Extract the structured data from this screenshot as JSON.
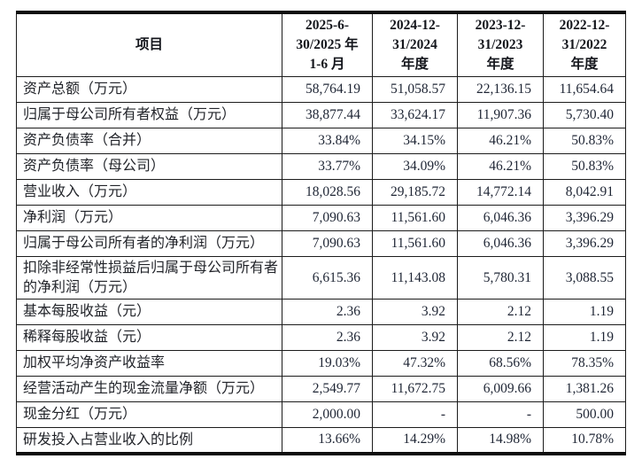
{
  "table": {
    "header": {
      "item": "项目",
      "periods": [
        "2025-6-\n30/2025 年\n1-6 月",
        "2024-12-\n31/2024\n年度",
        "2023-12-\n31/2023\n年度",
        "2022-12-\n31/2022\n年度"
      ]
    },
    "rows": [
      {
        "label": "资产总额（万元）",
        "values": [
          "58,764.19",
          "51,058.57",
          "22,136.15",
          "11,654.64"
        ]
      },
      {
        "label": "归属于母公司所有者权益（万元）",
        "values": [
          "38,877.44",
          "33,624.17",
          "11,907.36",
          "5,730.40"
        ]
      },
      {
        "label": "资产负债率（合并）",
        "values": [
          "33.84%",
          "34.15%",
          "46.21%",
          "50.83%"
        ]
      },
      {
        "label": "资产负债率（母公司）",
        "values": [
          "33.77%",
          "34.09%",
          "46.21%",
          "50.83%"
        ]
      },
      {
        "label": "营业收入（万元）",
        "values": [
          "18,028.56",
          "29,185.72",
          "14,772.14",
          "8,042.91"
        ]
      },
      {
        "label": "净利润（万元）",
        "values": [
          "7,090.63",
          "11,561.60",
          "6,046.36",
          "3,396.29"
        ]
      },
      {
        "label": "归属于母公司所有者的净利润（万元）",
        "values": [
          "7,090.63",
          "11,561.60",
          "6,046.36",
          "3,396.29"
        ]
      },
      {
        "label": "扣除非经常性损益后归属于母公司所有者的净利润（万元）",
        "values": [
          "6,615.36",
          "11,143.08",
          "5,780.31",
          "3,088.55"
        ]
      },
      {
        "label": "基本每股收益（元）",
        "values": [
          "2.36",
          "3.92",
          "2.12",
          "1.19"
        ]
      },
      {
        "label": "稀释每股收益（元）",
        "values": [
          "2.36",
          "3.92",
          "2.12",
          "1.19"
        ]
      },
      {
        "label": "加权平均净资产收益率",
        "values": [
          "19.03%",
          "47.32%",
          "68.56%",
          "78.35%"
        ]
      },
      {
        "label": "经营活动产生的现金流量净额（万元）",
        "values": [
          "2,549.77",
          "11,672.75",
          "6,009.66",
          "1,381.26"
        ]
      },
      {
        "label": "现金分红（万元）",
        "values": [
          "2,000.00",
          "-",
          "-",
          "500.00"
        ]
      },
      {
        "label": "研发投入占营业收入的比例",
        "values": [
          "13.66%",
          "14.29%",
          "14.98%",
          "10.78%"
        ]
      }
    ]
  }
}
